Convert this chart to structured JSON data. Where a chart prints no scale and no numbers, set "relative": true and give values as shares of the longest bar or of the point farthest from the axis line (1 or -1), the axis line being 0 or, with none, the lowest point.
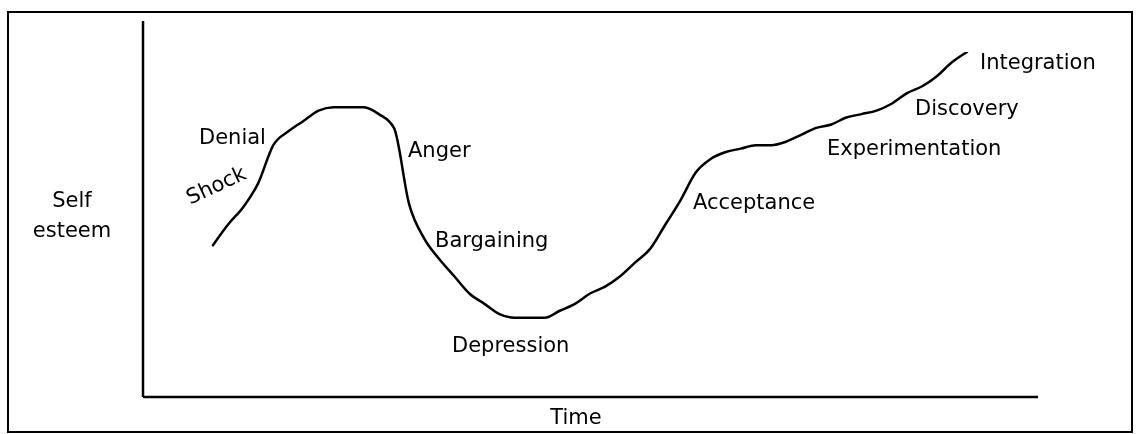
{
  "chart_data": {
    "type": "line",
    "xlabel": "Time",
    "ylabel": "Self esteem",
    "relative": true,
    "categories": [
      null,
      null,
      null,
      null,
      null,
      null,
      null,
      null,
      null,
      null,
      null,
      null,
      null,
      null,
      null,
      null,
      null,
      null,
      null,
      null,
      null,
      null,
      null,
      null,
      null,
      null,
      null,
      null,
      null,
      null,
      null,
      null,
      null,
      null,
      null,
      null,
      null,
      null,
      null,
      null,
      null,
      null,
      null,
      null,
      null,
      null,
      null,
      null,
      null,
      null,
      null
    ],
    "series": [
      {
        "color": "#000000",
        "values": [
          0.44,
          0.5,
          0.55,
          0.62,
          0.73,
          0.77,
          0.8,
          0.83,
          0.84,
          0.84,
          0.84,
          0.82,
          0.78,
          0.56,
          0.46,
          0.4,
          0.35,
          0.3,
          0.27,
          0.24,
          0.23,
          0.23,
          0.23,
          0.25,
          0.27,
          0.3,
          0.32,
          0.35,
          0.39,
          0.43,
          0.5,
          0.57,
          0.65,
          0.69,
          0.71,
          0.72,
          0.73,
          0.73,
          0.74,
          0.76,
          0.78,
          0.79,
          0.81,
          0.82,
          0.83,
          0.85,
          0.88,
          0.9,
          0.93,
          0.97,
          1
        ]
      }
    ],
    "annotations": [
      "Shock",
      "Denial",
      "Anger",
      "Bargaining",
      "Depression",
      "Acceptance",
      "Experimentation",
      "Discovery",
      "Integration"
    ]
  }
}
